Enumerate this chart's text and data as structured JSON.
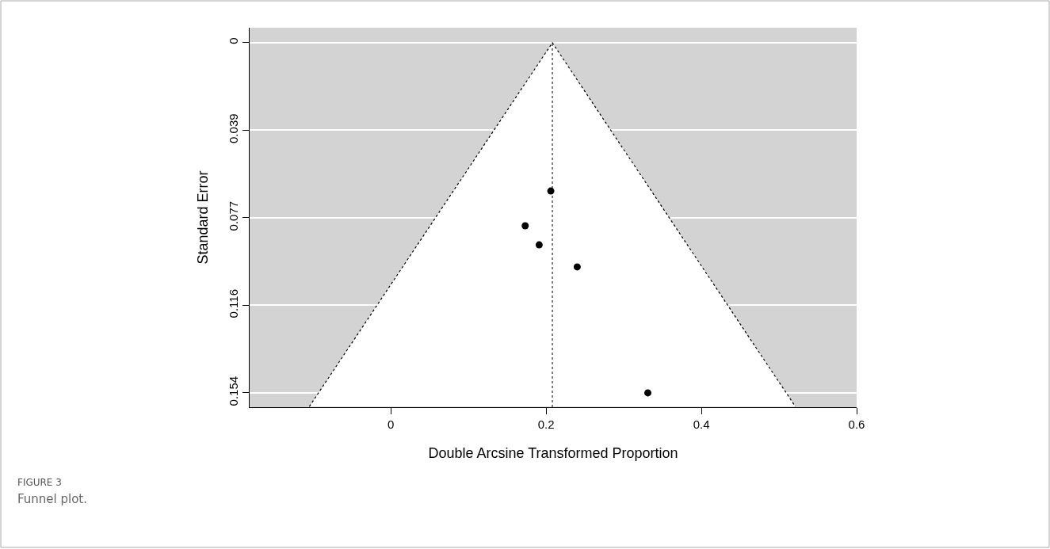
{
  "chart_data": {
    "type": "scatter",
    "xlabel": "Double Arcsine Transformed Proportion",
    "ylabel": "Standard Error",
    "xlim": [
      -0.182,
      0.6
    ],
    "ylim": [
      0.1603,
      -0.0066
    ],
    "xticks": [
      0,
      0.2,
      0.4,
      0.6
    ],
    "yticks": [
      0,
      {
        "value": 0.0385,
        "label": "0.039"
      },
      0.077,
      {
        "value": 0.1155,
        "label": "0.116"
      },
      0.154
    ],
    "grid": "y",
    "marker": "circle",
    "series": [
      {
        "type": "line",
        "color": "#000000",
        "line_style": "dotted",
        "marker": "none",
        "x": [
          -0.105,
          0.208,
          0.521
        ],
        "values": [
          0.16,
          0,
          0.16
        ]
      },
      {
        "color": "#000000",
        "x": [
          0.206,
          0.173,
          0.191,
          0.24,
          0.331
        ],
        "values": [
          0.0652,
          0.0805,
          0.0889,
          0.0986,
          0.154
        ]
      }
    ],
    "ref_lines": [
      {
        "axis": "x",
        "value": 0.208,
        "color": "#000000",
        "line_style": "dotted"
      }
    ],
    "annotations": [
      "FIGURE 3",
      "Funnel plot."
    ]
  }
}
